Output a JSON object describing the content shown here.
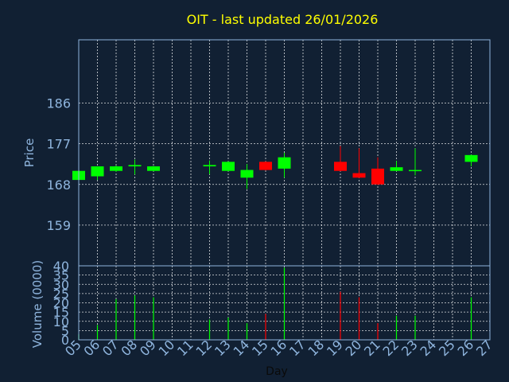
{
  "colors": {
    "background": "#112033",
    "title": "#ffff00",
    "axis_text": "#8fb5de",
    "up": "#00ff00",
    "down": "#ff0000",
    "grid": "#ffffff"
  },
  "chart_data": [
    {
      "type": "candlestick",
      "title": "OIT - last updated 26/01/2026",
      "ylabel": "Price",
      "ylim": [
        150,
        200
      ],
      "yticks": [
        159,
        168,
        177,
        186
      ],
      "grid": true,
      "xlim": [
        5,
        27
      ],
      "candles": [
        {
          "day": 5,
          "open": 169.0,
          "close": 171.0,
          "high": 171.2,
          "low": 168.8
        },
        {
          "day": 6,
          "open": 169.8,
          "close": 172.0,
          "high": 172.0,
          "low": 169.0
        },
        {
          "day": 7,
          "open": 171.0,
          "close": 172.0,
          "high": 172.2,
          "low": 170.8
        },
        {
          "day": 8,
          "open": 172.0,
          "close": 172.3,
          "high": 173.5,
          "low": 170.2
        },
        {
          "day": 9,
          "open": 171.0,
          "close": 172.0,
          "high": 172.1,
          "low": 170.9
        },
        {
          "day": 12,
          "open": 172.0,
          "close": 172.3,
          "high": 173.3,
          "low": 170.3
        },
        {
          "day": 13,
          "open": 171.0,
          "close": 173.0,
          "high": 173.1,
          "low": 170.9
        },
        {
          "day": 14,
          "open": 169.5,
          "close": 171.2,
          "high": 172.5,
          "low": 167.0
        },
        {
          "day": 15,
          "open": 173.0,
          "close": 171.2,
          "high": 173.1,
          "low": 171.1
        },
        {
          "day": 16,
          "open": 171.5,
          "close": 174.0,
          "high": 175.0,
          "low": 169.5
        },
        {
          "day": 19,
          "open": 173.0,
          "close": 171.0,
          "high": 176.5,
          "low": 170.9
        },
        {
          "day": 20,
          "open": 170.5,
          "close": 169.5,
          "high": 176.0,
          "low": 169.4
        },
        {
          "day": 21,
          "open": 171.5,
          "close": 168.0,
          "high": 174.0,
          "low": 167.9
        },
        {
          "day": 22,
          "open": 171.0,
          "close": 171.8,
          "high": 173.2,
          "low": 170.9
        },
        {
          "day": 23,
          "open": 171.0,
          "close": 171.2,
          "high": 176.0,
          "low": 170.0
        },
        {
          "day": 26,
          "open": 173.0,
          "close": 174.5,
          "high": 174.6,
          "low": 172.0
        }
      ]
    },
    {
      "type": "bar",
      "ylabel": "Volume (0000)",
      "xlabel": "Day",
      "ylim": [
        0,
        40
      ],
      "yticks": [
        0,
        5,
        10,
        15,
        20,
        25,
        30,
        35,
        40
      ],
      "x_tick_labels": [
        "05",
        "06",
        "07",
        "08",
        "09",
        "10",
        "11",
        "12",
        "13",
        "14",
        "15",
        "16",
        "17",
        "18",
        "19",
        "20",
        "21",
        "22",
        "23",
        "24",
        "25",
        "26",
        "27"
      ],
      "bars": [
        {
          "day": 5,
          "value": 3,
          "dir": "up"
        },
        {
          "day": 6,
          "value": 8,
          "dir": "up"
        },
        {
          "day": 7,
          "value": 22,
          "dir": "up"
        },
        {
          "day": 8,
          "value": 24,
          "dir": "up"
        },
        {
          "day": 9,
          "value": 23,
          "dir": "up"
        },
        {
          "day": 12,
          "value": 11,
          "dir": "up"
        },
        {
          "day": 13,
          "value": 12,
          "dir": "up"
        },
        {
          "day": 14,
          "value": 9,
          "dir": "up"
        },
        {
          "day": 15,
          "value": 14,
          "dir": "down"
        },
        {
          "day": 16,
          "value": 39,
          "dir": "up"
        },
        {
          "day": 19,
          "value": 26,
          "dir": "down"
        },
        {
          "day": 20,
          "value": 23,
          "dir": "down"
        },
        {
          "day": 21,
          "value": 9,
          "dir": "down"
        },
        {
          "day": 22,
          "value": 13,
          "dir": "up"
        },
        {
          "day": 23,
          "value": 13,
          "dir": "up"
        },
        {
          "day": 26,
          "value": 23,
          "dir": "up"
        }
      ]
    }
  ]
}
